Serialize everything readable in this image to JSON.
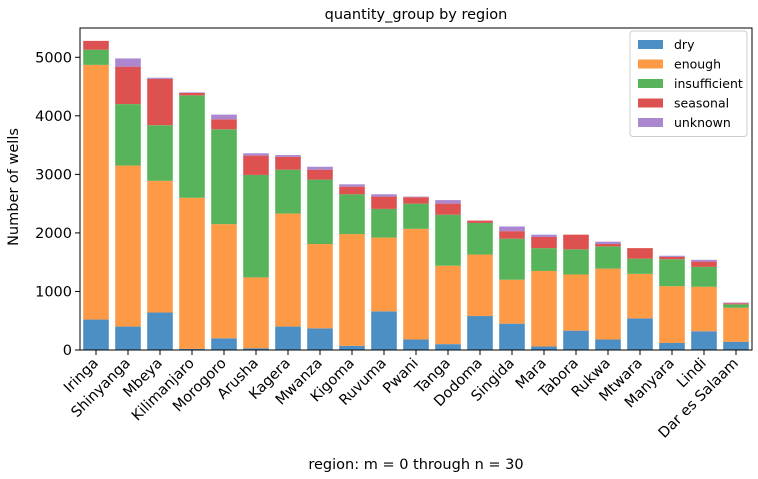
{
  "chart_data": {
    "type": "bar",
    "stacked": true,
    "title": "quantity_group by region",
    "xlabel": "region: m = 0 through n = 30",
    "ylabel": "Number of wells",
    "ylim": [
      0,
      5500
    ],
    "yticks": [
      0,
      1000,
      2000,
      3000,
      4000,
      5000
    ],
    "grid": false,
    "legend_position": "top-right",
    "categories": [
      "Iringa",
      "Shinyanga",
      "Mbeya",
      "Kilimanjaro",
      "Morogoro",
      "Arusha",
      "Kagera",
      "Mwanza",
      "Kigoma",
      "Ruvuma",
      "Pwani",
      "Tanga",
      "Dodoma",
      "Singida",
      "Mara",
      "Tabora",
      "Rukwa",
      "Mtwara",
      "Manyara",
      "Lindi",
      "Dar es Salaam"
    ],
    "series": [
      {
        "name": "dry",
        "color": "#4c8fc4",
        "values": [
          520,
          400,
          640,
          20,
          200,
          30,
          400,
          370,
          70,
          660,
          180,
          100,
          580,
          450,
          60,
          330,
          180,
          540,
          120,
          320,
          140
        ]
      },
      {
        "name": "enough",
        "color": "#fd9a45",
        "values": [
          4350,
          2750,
          2250,
          2580,
          1950,
          1210,
          1930,
          1440,
          1910,
          1260,
          1890,
          1340,
          1050,
          750,
          1290,
          960,
          1210,
          760,
          970,
          760,
          580
        ]
      },
      {
        "name": "insufficient",
        "color": "#58b45a",
        "values": [
          260,
          1050,
          950,
          1750,
          1620,
          1750,
          750,
          1100,
          680,
          490,
          430,
          870,
          540,
          700,
          390,
          430,
          380,
          260,
          460,
          340,
          60
        ]
      },
      {
        "name": "seasonal",
        "color": "#de5151",
        "values": [
          150,
          640,
          790,
          40,
          170,
          330,
          220,
          170,
          130,
          210,
          110,
          190,
          40,
          130,
          190,
          250,
          40,
          180,
          40,
          90,
          20
        ]
      },
      {
        "name": "unknown",
        "color": "#aa87cf",
        "values": [
          0,
          140,
          20,
          10,
          80,
          40,
          30,
          50,
          40,
          40,
          10,
          60,
          0,
          80,
          40,
          0,
          40,
          0,
          20,
          30,
          10
        ]
      }
    ]
  }
}
